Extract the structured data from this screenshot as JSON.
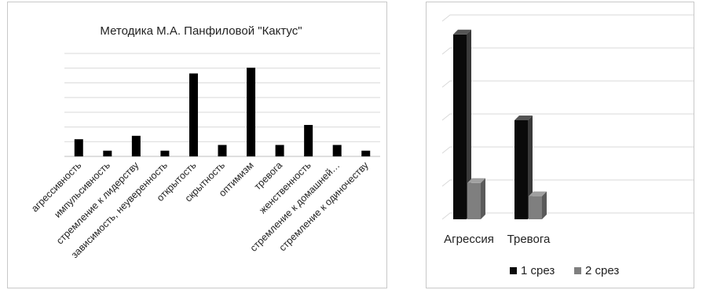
{
  "chart_data": [
    {
      "type": "bar",
      "title": "Методика М.А. Панфиловой \"Кактус\"",
      "categories": [
        "агрессивность",
        "импульсивность",
        "стремление к лидерству",
        "зависимость, неуверенность",
        "открытость",
        "скрытность",
        "оптимизм",
        "тревога",
        "женственность",
        "стремление к домашней…",
        "стремление к одиночеству"
      ],
      "values": [
        3,
        1,
        3.6,
        1,
        14.5,
        2,
        15.5,
        2,
        5.5,
        2,
        1
      ],
      "ylim": [
        0,
        18
      ],
      "grid": true,
      "colors": {
        "bar": "#000000",
        "grid": "#d9d9d9"
      }
    },
    {
      "type": "bar",
      "categories": [
        "Агрессия",
        "Тревога"
      ],
      "series": [
        {
          "name": "1 срез",
          "values": [
            5.6,
            3
          ]
        },
        {
          "name": "2 срез",
          "values": [
            1.1,
            0.7
          ]
        }
      ],
      "ylim": [
        0,
        6
      ],
      "grid": true,
      "legend": "bottom",
      "colors": {
        "series1": "#0a0a0a",
        "series2": "#7f7f7f",
        "grid": "#d9d9d9"
      }
    }
  ]
}
